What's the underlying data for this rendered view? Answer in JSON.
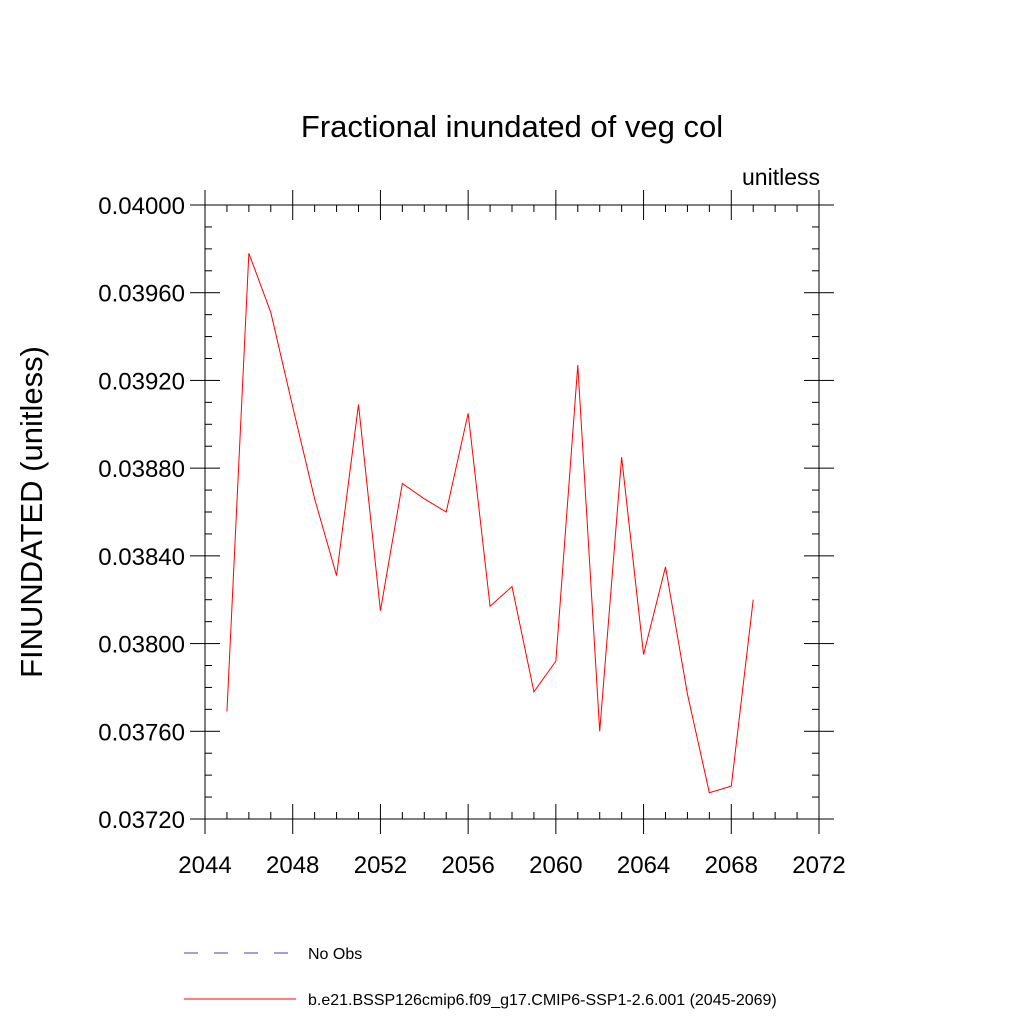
{
  "chart_data": {
    "type": "line",
    "title": "Fractional inundated of veg col",
    "units_label": "unitless",
    "xlabel": "",
    "ylabel": "FINUNDATED  (unitless)",
    "xlim": [
      2044,
      2072
    ],
    "ylim": [
      0.0372,
      0.04
    ],
    "x_ticks": [
      2044,
      2048,
      2052,
      2056,
      2060,
      2064,
      2068,
      2072
    ],
    "x_tick_labels": [
      "2044",
      "2048",
      "2052",
      "2056",
      "2060",
      "2064",
      "2068",
      "2072"
    ],
    "y_ticks": [
      0.0372,
      0.0376,
      0.038,
      0.0384,
      0.0388,
      0.0392,
      0.0396,
      0.04
    ],
    "y_tick_labels": [
      "0.03720",
      "0.03760",
      "0.03800",
      "0.03840",
      "0.03880",
      "0.03920",
      "0.03960",
      "0.04000"
    ],
    "grid": false,
    "legend_position": "bottom",
    "series": [
      {
        "name": "b.e21.BSSP126cmip6.f09_g17.CMIP6-SSP1-2.6.001 (2045-2069)",
        "color": "#ff0000",
        "style": "solid",
        "x": [
          2045,
          2046,
          2047,
          2048,
          2049,
          2050,
          2051,
          2052,
          2053,
          2054,
          2055,
          2056,
          2057,
          2058,
          2059,
          2060,
          2061,
          2062,
          2063,
          2064,
          2065,
          2066,
          2067,
          2068,
          2069
        ],
        "values": [
          0.03769,
          0.03978,
          0.03951,
          0.03908,
          0.03866,
          0.03831,
          0.03909,
          0.03815,
          0.03873,
          0.03866,
          0.0386,
          0.03905,
          0.03817,
          0.03826,
          0.03778,
          0.03792,
          0.03927,
          0.0376,
          0.03885,
          0.03795,
          0.03835,
          0.03777,
          0.03732,
          0.03735,
          0.0382
        ]
      }
    ],
    "legend": [
      {
        "label": "No Obs",
        "color": "#4b3fb5",
        "style": "dashed"
      },
      {
        "label": "b.e21.BSSP126cmip6.f09_g17.CMIP6-SSP1-2.6.001 (2045-2069)",
        "color": "#ff0000",
        "style": "solid"
      }
    ]
  }
}
